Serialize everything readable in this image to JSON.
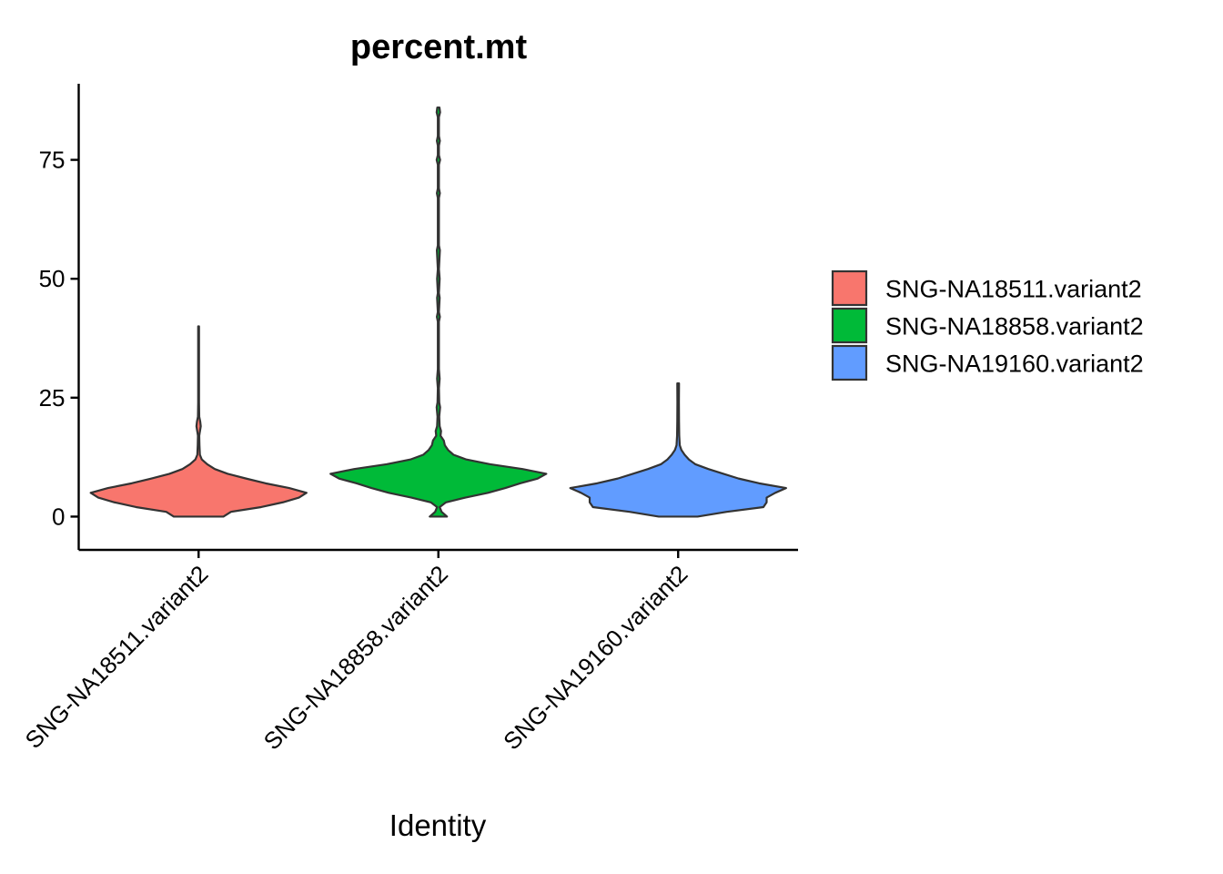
{
  "chart_data": {
    "type": "violin",
    "title": "percent.mt",
    "xlabel": "Identity",
    "ylabel": "",
    "ylim": [
      -7,
      91
    ],
    "yticks": [
      0,
      25,
      50,
      75
    ],
    "grid": false,
    "legend_position": "right",
    "categories": [
      "SNG-NA18511.variant2",
      "SNG-NA18858.variant2",
      "SNG-NA19160.variant2"
    ],
    "series": [
      {
        "name": "SNG-NA18511.variant2",
        "color": "#F8766D",
        "min": 0,
        "max": 40,
        "profile": [
          [
            0,
            0.23
          ],
          [
            1,
            0.3
          ],
          [
            2,
            0.58
          ],
          [
            3,
            0.78
          ],
          [
            4,
            0.93
          ],
          [
            5,
            1.0
          ],
          [
            6,
            0.84
          ],
          [
            7,
            0.62
          ],
          [
            8,
            0.44
          ],
          [
            9,
            0.27
          ],
          [
            10,
            0.15
          ],
          [
            11,
            0.08
          ],
          [
            12,
            0.03
          ],
          [
            13,
            0.012
          ],
          [
            15,
            0.008
          ],
          [
            17,
            0.006
          ],
          [
            19,
            0.02
          ],
          [
            20,
            0.015
          ],
          [
            21,
            0.006
          ],
          [
            24,
            0.004
          ],
          [
            30,
            0.003
          ],
          [
            35,
            0.003
          ],
          [
            40,
            0.003
          ]
        ]
      },
      {
        "name": "SNG-NA18858.variant2",
        "color": "#00BA38",
        "min": 0,
        "max": 86,
        "profile": [
          [
            0,
            0.08
          ],
          [
            1,
            0.03
          ],
          [
            2,
            0.012
          ],
          [
            3,
            0.07
          ],
          [
            4,
            0.25
          ],
          [
            5,
            0.46
          ],
          [
            6,
            0.62
          ],
          [
            7,
            0.76
          ],
          [
            8,
            0.92
          ],
          [
            9,
            1.0
          ],
          [
            10,
            0.78
          ],
          [
            11,
            0.48
          ],
          [
            12,
            0.26
          ],
          [
            13,
            0.14
          ],
          [
            14,
            0.09
          ],
          [
            15,
            0.06
          ],
          [
            16,
            0.05
          ],
          [
            17,
            0.02
          ],
          [
            18,
            0.025
          ],
          [
            19,
            0.012
          ],
          [
            21,
            0.008
          ],
          [
            23,
            0.016
          ],
          [
            24,
            0.008
          ],
          [
            27,
            0.005
          ],
          [
            29,
            0.012
          ],
          [
            31,
            0.005
          ],
          [
            41,
            0.005
          ],
          [
            42,
            0.014
          ],
          [
            43,
            0.005
          ],
          [
            46,
            0.012
          ],
          [
            47,
            0.005
          ],
          [
            50,
            0.012
          ],
          [
            52,
            0.005
          ],
          [
            56,
            0.014
          ],
          [
            57,
            0.005
          ],
          [
            67,
            0.005
          ],
          [
            68,
            0.014
          ],
          [
            69,
            0.005
          ],
          [
            74,
            0.005
          ],
          [
            75,
            0.016
          ],
          [
            76,
            0.005
          ],
          [
            78,
            0.005
          ],
          [
            79,
            0.014
          ],
          [
            80,
            0.005
          ],
          [
            84,
            0.005
          ],
          [
            85,
            0.016
          ],
          [
            86,
            0.01
          ]
        ]
      },
      {
        "name": "SNG-NA19160.variant2",
        "color": "#619CFF",
        "min": 0,
        "max": 28,
        "profile": [
          [
            0,
            0.18
          ],
          [
            1,
            0.45
          ],
          [
            2,
            0.79
          ],
          [
            3,
            0.82
          ],
          [
            4,
            0.82
          ],
          [
            5,
            0.9
          ],
          [
            6,
            1.0
          ],
          [
            7,
            0.75
          ],
          [
            8,
            0.56
          ],
          [
            9,
            0.42
          ],
          [
            10,
            0.28
          ],
          [
            11,
            0.16
          ],
          [
            12,
            0.1
          ],
          [
            13,
            0.06
          ],
          [
            14,
            0.03
          ],
          [
            15,
            0.015
          ],
          [
            17,
            0.01
          ],
          [
            20,
            0.008
          ],
          [
            24,
            0.007
          ],
          [
            28,
            0.008
          ]
        ]
      }
    ]
  }
}
